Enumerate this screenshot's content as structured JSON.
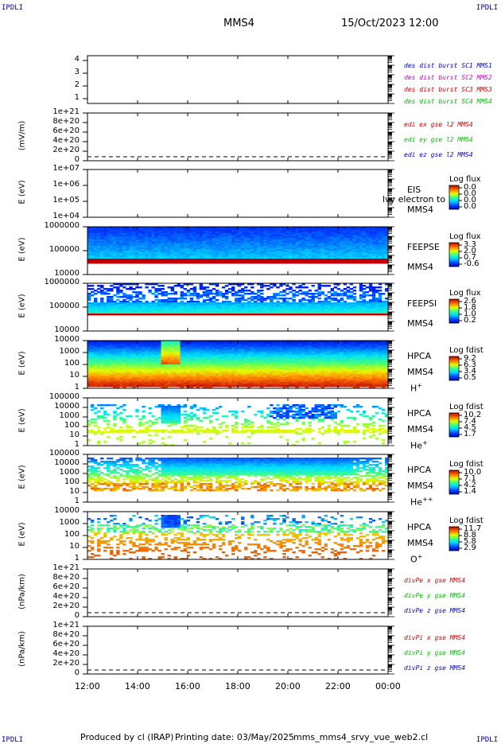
{
  "corner_label": "IPDLI",
  "header": {
    "mission": "MMS4",
    "date": "15/Oct/2023 12:00"
  },
  "panels": [
    {
      "id": "burst",
      "ylabel": "",
      "yticks": [
        "4",
        "3",
        "2",
        "1"
      ],
      "legend": [
        {
          "text": "des dist burst SC1 MMS1",
          "color": "#0000cc"
        },
        {
          "text": "des dist burst SC2 MMS2",
          "color": "#cc00cc"
        },
        {
          "text": "des dist burst SC3 MMS3",
          "color": "#cc0000"
        },
        {
          "text": "des dist burst SC4 MMS4",
          "color": "#00bb00"
        }
      ]
    },
    {
      "id": "edi",
      "ylabel": "(mV/m)",
      "yticks": [
        "1e+21",
        "8e+20",
        "6e+20",
        "4e+20",
        "2e+20",
        "0"
      ],
      "legend": [
        {
          "text": "edi ex gse l2 MMS4",
          "color": "#cc0000"
        },
        {
          "text": "edi ey gse l2 MMS4",
          "color": "#00bb00"
        },
        {
          "text": "edi ez gse l2 MMS4",
          "color": "#0000cc"
        }
      ]
    },
    {
      "id": "eis",
      "ylabel": "E (eV)",
      "yticks": [
        "1e+07",
        "1e+06",
        "1e+05",
        "1e+04"
      ],
      "side": [
        "EIS",
        "MMS4"
      ],
      "overlay": "lvy electron to",
      "cb": {
        "title": "Log flux",
        "values": [
          "0.0",
          "0.0",
          "0.0",
          "0.0"
        ]
      }
    },
    {
      "id": "feepse",
      "ylabel": "E (eV)",
      "yticks": [
        "1000000",
        "100000",
        "10000"
      ],
      "side": [
        "FEEPSE",
        "MMS4"
      ],
      "cb": {
        "title": "Log flux",
        "values": [
          "3.3",
          "2.0",
          "0.7",
          "-0.6"
        ]
      }
    },
    {
      "id": "feepsi",
      "ylabel": "E (eV)",
      "yticks": [
        "1000000",
        "100000",
        "10000"
      ],
      "side": [
        "FEEPSI",
        "MMS4"
      ],
      "cb": {
        "title": "Log flux",
        "values": [
          "2.6",
          "1.8",
          "1.0",
          "0.2"
        ]
      }
    },
    {
      "id": "hpca_h",
      "ylabel": "E (eV)",
      "yticks": [
        "10000",
        "1000",
        "100",
        "10",
        "1"
      ],
      "side": [
        "HPCA",
        "MMS4",
        "H"
      ],
      "species_sup": "+",
      "cb": {
        "title": "Log fdist",
        "values": [
          "9.2",
          "6.3",
          "3.4",
          "0.5"
        ]
      }
    },
    {
      "id": "hpca_he",
      "ylabel": "E (eV)",
      "yticks": [
        "100000",
        "10000",
        "1000",
        "100",
        "10",
        "1"
      ],
      "side": [
        "HPCA",
        "MMS4",
        "He"
      ],
      "species_sup": "+",
      "cb": {
        "title": "Log fdist",
        "values": [
          "10.2",
          "7.4",
          "4.5",
          "1.7"
        ]
      }
    },
    {
      "id": "hpca_hepp",
      "ylabel": "E (eV)",
      "yticks": [
        "100000",
        "10000",
        "1000",
        "100",
        "10",
        "1"
      ],
      "side": [
        "HPCA",
        "MMS4",
        "He"
      ],
      "species_sup": "++",
      "cb": {
        "title": "Log fdist",
        "values": [
          "10.0",
          "7.1",
          "4.2",
          "1.4"
        ]
      }
    },
    {
      "id": "hpca_o",
      "ylabel": "E (eV)",
      "yticks": [
        "10000",
        "1000",
        "100",
        "10",
        "1"
      ],
      "side": [
        "HPCA",
        "MMS4",
        "O"
      ],
      "species_sup": "+",
      "cb": {
        "title": "Log fdist",
        "values": [
          "11.7",
          "8.8",
          "5.8",
          "2.9"
        ]
      }
    },
    {
      "id": "divpe",
      "ylabel": "(nPa/km)",
      "yticks": [
        "1e+21",
        "8e+20",
        "6e+20",
        "4e+20",
        "2e+20",
        "0"
      ],
      "legend": [
        {
          "text": "divPe x gse MMS4",
          "color": "#cc0000"
        },
        {
          "text": "divPe y gse MMS4",
          "color": "#00bb00"
        },
        {
          "text": "divPe z gse MMS4",
          "color": "#0000cc"
        }
      ]
    },
    {
      "id": "divpi",
      "ylabel": "(nPa/km)",
      "yticks": [
        "1e+21",
        "8e+20",
        "6e+20",
        "4e+20",
        "2e+20",
        "0"
      ],
      "legend": [
        {
          "text": "divPi x gse MMS4",
          "color": "#cc0000"
        },
        {
          "text": "divPi y gse MMS4",
          "color": "#00bb00"
        },
        {
          "text": "divPi z gse MMS4",
          "color": "#0000cc"
        }
      ]
    }
  ],
  "xticks": [
    "12:00",
    "14:00",
    "16:00",
    "18:00",
    "20:00",
    "22:00",
    "00:00"
  ],
  "footer": {
    "produced": "Produced by cl (IRAP)",
    "printing": "Printing date: 03/May/2025",
    "file": "mms_mms4_srvy_vue_web2.cl"
  },
  "chart_data": {
    "type": "heatmap",
    "x_range": [
      "12:00",
      "00:00"
    ],
    "panels": [
      {
        "name": "FEEPSE",
        "yrange": [
          10000,
          1000000
        ],
        "colorbar": {
          "label": "Log flux",
          "range": [
            -0.6,
            3.3
          ]
        }
      },
      {
        "name": "FEEPSI",
        "yrange": [
          10000,
          1000000
        ],
        "colorbar": {
          "label": "Log flux",
          "range": [
            0.2,
            2.6
          ]
        }
      },
      {
        "name": "HPCA H+",
        "yrange": [
          1,
          10000
        ],
        "colorbar": {
          "label": "Log fdist",
          "range": [
            0.5,
            9.2
          ]
        }
      },
      {
        "name": "HPCA He+",
        "yrange": [
          1,
          100000
        ],
        "colorbar": {
          "label": "Log fdist",
          "range": [
            1.7,
            10.2
          ]
        }
      },
      {
        "name": "HPCA He++",
        "yrange": [
          1,
          100000
        ],
        "colorbar": {
          "label": "Log fdist",
          "range": [
            1.4,
            10.0
          ]
        }
      },
      {
        "name": "HPCA O+",
        "yrange": [
          1,
          10000
        ],
        "colorbar": {
          "label": "Log fdist",
          "range": [
            2.9,
            11.7
          ]
        }
      }
    ]
  }
}
